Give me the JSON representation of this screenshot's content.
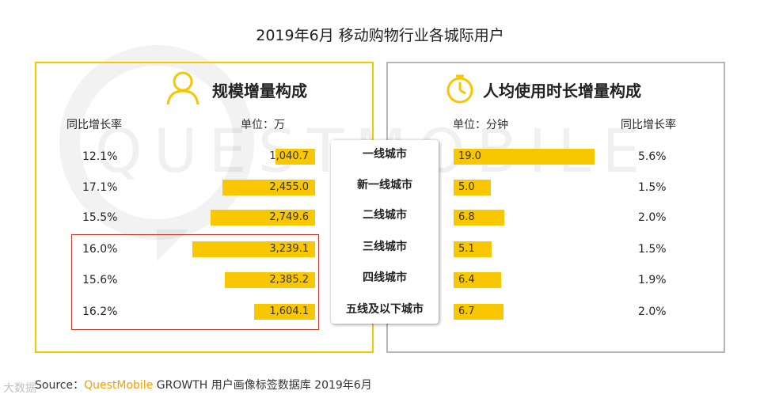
{
  "title": "2019年6月 移动购物行业各城际用户",
  "watermark": "QUESTMOBILE",
  "left_panel": {
    "heading": "规模增量构成",
    "icon": "user-icon",
    "growth_header": "同比增长率",
    "unit": "单位：万",
    "accent_color": "#f7c600"
  },
  "right_panel": {
    "heading": "人均使用时长增量构成",
    "icon": "clock-icon",
    "growth_header": "同比增长率",
    "unit": "单位：分钟",
    "border_color": "#b5b5b5"
  },
  "bar_color": "#f8c700",
  "highlight_color": "#c0392b",
  "chart_data": [
    {
      "type": "bar",
      "orientation": "horizontal",
      "direction": "right-to-left",
      "categories": [
        "一线城市",
        "新一线城市",
        "二线城市",
        "三线城市",
        "四线城市",
        "五线及以下城市"
      ],
      "values": [
        1040.7,
        2455.0,
        2749.6,
        3239.1,
        2385.2,
        1604.1
      ],
      "value_labels": [
        "1,040.7",
        "2,455.0",
        "2,749.6",
        "3,239.1",
        "2,385.2",
        "1,604.1"
      ],
      "growth_rates": [
        "12.1%",
        "17.1%",
        "15.5%",
        "16.0%",
        "15.6%",
        "16.2%"
      ],
      "title": "规模增量构成",
      "unit": "单位：万",
      "xlim": [
        0,
        3700
      ]
    },
    {
      "type": "bar",
      "orientation": "horizontal",
      "direction": "left-to-right",
      "categories": [
        "一线城市",
        "新一线城市",
        "二线城市",
        "三线城市",
        "四线城市",
        "五线及以下城市"
      ],
      "values": [
        19.0,
        5.0,
        6.8,
        5.1,
        6.4,
        6.7
      ],
      "value_labels": [
        "19.0",
        "5.0",
        "6.8",
        "5.1",
        "6.4",
        "6.7"
      ],
      "growth_rates": [
        "5.6%",
        "1.5%",
        "2.0%",
        "1.5%",
        "1.9%",
        "2.0%"
      ],
      "title": "人均使用时长增量构成",
      "unit": "单位：分钟",
      "xlim": [
        0,
        20
      ]
    }
  ],
  "source": {
    "prefix": "Source：",
    "brand": "QuestMobile",
    "text": " GROWTH 用户画像标签数据库 2019年6月"
  },
  "corner_mark": "大数据"
}
